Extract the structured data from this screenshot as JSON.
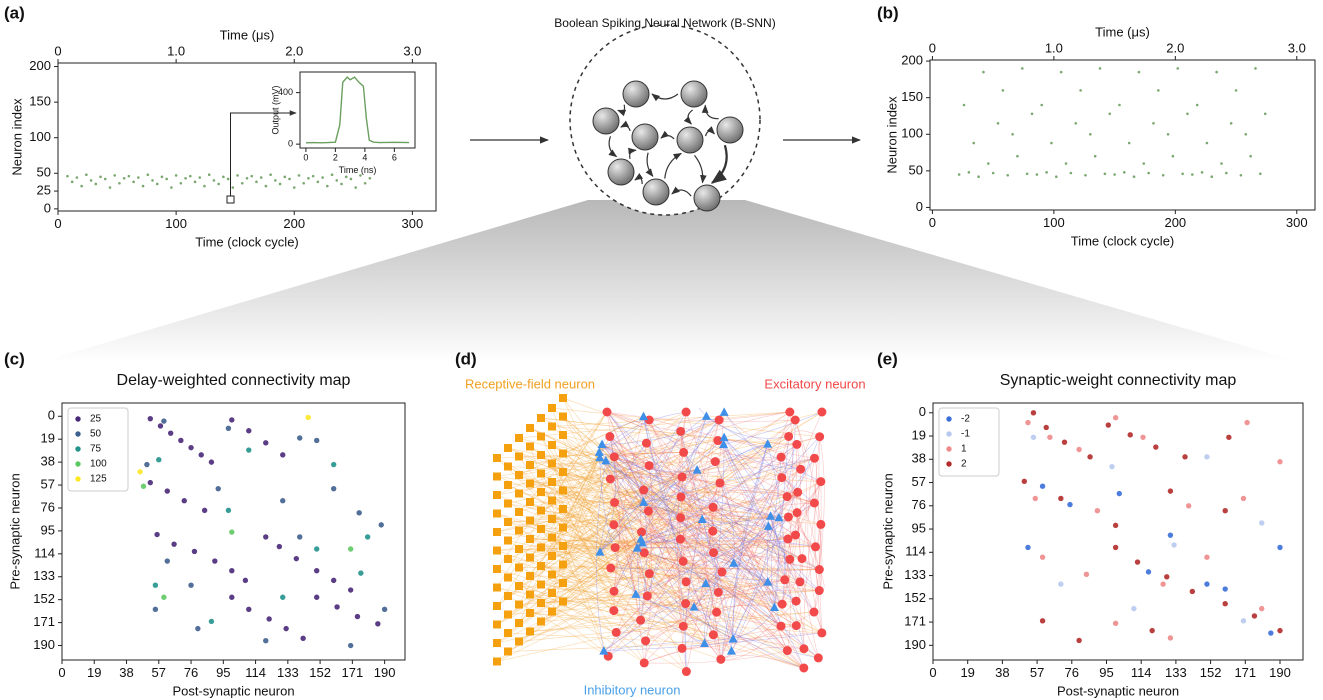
{
  "chart_data": [
    {
      "type": "scatter",
      "label": "(a)",
      "xlabel": "Time (clock cycle)",
      "ylabel": "Neuron index",
      "x2label": "Time (μs)",
      "xlim": [
        0,
        320
      ],
      "xticks": [
        0,
        100,
        200,
        300
      ],
      "x2lim": [
        0,
        3.2
      ],
      "x2ticks": [
        0,
        {
          "value": 1,
          "label": "1.0"
        },
        {
          "value": 2,
          "label": "2.0"
        },
        {
          "value": 3,
          "label": "3.0"
        }
      ],
      "ylim": [
        -3,
        205
      ],
      "yticks": [
        0,
        25,
        50,
        100,
        150,
        200
      ],
      "series": [
        {
          "color": "#6b9f5f",
          "x": [
            8,
            12,
            16,
            20,
            24,
            28,
            32,
            36,
            40,
            44,
            48,
            52,
            56,
            60,
            64,
            68,
            72,
            76,
            80,
            84,
            88,
            92,
            96,
            100,
            104,
            108,
            112,
            116,
            120,
            124,
            128,
            132,
            136,
            140,
            144,
            148,
            152,
            156,
            160,
            164,
            168,
            172,
            176,
            180,
            184,
            188,
            192,
            196,
            200,
            204,
            208,
            212,
            216,
            220,
            224,
            228,
            232,
            236,
            240,
            244,
            248,
            252,
            256,
            260,
            264
          ],
          "values": [
            46,
            38,
            44,
            32,
            48,
            40,
            35,
            45,
            42,
            30,
            47,
            36,
            43,
            46,
            38,
            44,
            32,
            48,
            40,
            35,
            45,
            42,
            30,
            47,
            36,
            43,
            46,
            38,
            44,
            32,
            48,
            40,
            35,
            45,
            42,
            30,
            47,
            36,
            43,
            46,
            38,
            44,
            32,
            48,
            40,
            35,
            45,
            42,
            30,
            47,
            36,
            43,
            46,
            38,
            44,
            32,
            48,
            40,
            35,
            45,
            42,
            30,
            47,
            36,
            43
          ]
        }
      ]
    },
    {
      "type": "line",
      "xlabel": "Time (ns)",
      "ylabel": "Output (mV)",
      "xlim": [
        -0.4,
        7.4
      ],
      "xticks": [
        0,
        2,
        4,
        6
      ],
      "ylim": [
        -30,
        560
      ],
      "yticks": [
        0,
        400
      ],
      "color": "#6b9f5f",
      "x": [
        0,
        0.5,
        1,
        1.5,
        2,
        2.3,
        2.5,
        2.8,
        3,
        3.3,
        3.6,
        3.9,
        4.1,
        4.3,
        4.6,
        5,
        6,
        7
      ],
      "values": [
        10,
        12,
        10,
        12,
        15,
        150,
        480,
        520,
        500,
        520,
        480,
        450,
        200,
        30,
        15,
        12,
        14,
        12
      ]
    },
    {
      "type": "scatter",
      "label": "(b)",
      "xlabel": "Time (clock cycle)",
      "ylabel": "Neuron index",
      "x2label": "Time (μs)",
      "xlim": [
        -2,
        315
      ],
      "xticks": [
        0,
        100,
        200,
        300
      ],
      "x2lim": [
        -0.02,
        3.15
      ],
      "x2ticks": [
        0,
        {
          "value": 1,
          "label": "1.0"
        },
        {
          "value": 2,
          "label": "2.0"
        },
        {
          "value": 3,
          "label": "3.0"
        }
      ],
      "ylim": [
        -3.5,
        201.5
      ],
      "yticks": [
        0,
        50,
        100,
        150,
        200
      ],
      "series": [
        {
          "color": "#6b9f5f",
          "x": [
            22,
            26,
            30,
            34,
            38,
            42,
            46,
            50,
            54,
            58,
            62,
            66,
            70,
            74,
            78,
            82,
            86,
            90,
            94,
            98,
            102,
            106,
            110,
            114,
            118,
            122,
            126,
            130,
            134,
            138,
            142,
            146,
            150,
            154,
            158,
            162,
            166,
            170,
            174,
            178,
            182,
            186,
            190,
            194,
            198,
            202,
            206,
            210,
            214,
            218,
            222,
            226,
            230,
            234,
            238,
            242,
            246,
            250,
            254,
            258,
            262,
            266,
            270,
            274
          ],
          "values": [
            45,
            140,
            48,
            88,
            42,
            185,
            60,
            47,
            115,
            160,
            44,
            100,
            70,
            190,
            46,
            128,
            45,
            140,
            48,
            88,
            42,
            185,
            60,
            47,
            115,
            160,
            44,
            100,
            70,
            190,
            46,
            128,
            45,
            140,
            48,
            88,
            42,
            185,
            60,
            47,
            115,
            160,
            44,
            100,
            70,
            190,
            46,
            128,
            45,
            140,
            48,
            88,
            42,
            185,
            60,
            47,
            115,
            160,
            44,
            100,
            70,
            190,
            46,
            128
          ]
        }
      ]
    },
    {
      "type": "scatter",
      "label": "(c)",
      "title": "Delay-weighted connectivity map",
      "xlabel": "Post-synaptic neuron",
      "ylabel": "Pre-synaptic neuron",
      "xlim": [
        0,
        202
      ],
      "xticks": [
        0,
        19,
        38,
        57,
        76,
        95,
        114,
        133,
        152,
        171,
        190
      ],
      "ylim": [
        -11,
        202
      ],
      "y_inverted": true,
      "yticks": [
        0,
        19,
        38,
        57,
        76,
        95,
        114,
        133,
        152,
        171,
        190
      ],
      "legend": "upper left",
      "series": [
        {
          "name": "25",
          "color": "#482878",
          "x": [
            52,
            58,
            64,
            70,
            76,
            82,
            88,
            100,
            110,
            120,
            130,
            52,
            62,
            72,
            84,
            56,
            66,
            78,
            90,
            100,
            108,
            120,
            128,
            138,
            150,
            160,
            170,
            150,
            162,
            174,
            186,
            100,
            110,
            122,
            132,
            142
          ],
          "values": [
            2,
            8,
            14,
            20,
            26,
            32,
            38,
            3,
            12,
            22,
            32,
            55,
            62,
            70,
            78,
            98,
            106,
            112,
            120,
            128,
            136,
            100,
            108,
            118,
            128,
            136,
            144,
            150,
            158,
            166,
            172,
            150,
            160,
            168,
            176,
            184
          ]
        },
        {
          "name": "50",
          "color": "#3e5f8e",
          "x": [
            60,
            98,
            140,
            50,
            92,
            130,
            160,
            175,
            62,
            140,
            188,
            55,
            80,
            120,
            170,
            190,
            76,
            150
          ],
          "values": [
            4,
            10,
            18,
            40,
            60,
            70,
            60,
            80,
            120,
            100,
            90,
            160,
            176,
            186,
            190,
            160,
            140,
            20
          ]
        },
        {
          "name": "75",
          "color": "#22928c",
          "x": [
            57,
            110,
            160,
            180,
            98,
            150,
            55,
            130,
            88,
            176
          ],
          "values": [
            36,
            28,
            40,
            100,
            78,
            110,
            140,
            150,
            170,
            130
          ]
        },
        {
          "name": "100",
          "color": "#5ec962",
          "x": [
            48,
            100,
            170,
            60
          ],
          "values": [
            58,
            96,
            110,
            150
          ]
        },
        {
          "name": "125",
          "color": "#fde725",
          "x": [
            145,
            46
          ],
          "values": [
            1,
            46
          ]
        }
      ]
    },
    {
      "type": "scatter",
      "label": "(e)",
      "title": "Synaptic-weight connectivity map",
      "xlabel": "Post-synaptic neuron",
      "ylabel": "Pre-synaptic neuron",
      "xlim": [
        0,
        202.6
      ],
      "xticks": [
        0,
        19,
        38,
        57,
        76,
        95,
        114,
        133,
        152,
        171,
        190
      ],
      "ylim": [
        -8,
        202
      ],
      "y_inverted": true,
      "yticks": [
        0,
        19,
        38,
        57,
        76,
        95,
        114,
        133,
        152,
        171,
        190
      ],
      "legend": "upper left",
      "series": [
        {
          "name": "-2",
          "color": "#3a6fd8",
          "x": [
            60,
            75,
            102,
            130,
            150,
            160,
            185,
            190,
            52,
            118
          ],
          "values": [
            60,
            75,
            66,
            100,
            140,
            144,
            180,
            110,
            110,
            130
          ]
        },
        {
          "name": "-1",
          "color": "#b7c9ee",
          "x": [
            55,
            98,
            150,
            180,
            70,
            110,
            170,
            132
          ],
          "values": [
            20,
            44,
            36,
            90,
            140,
            160,
            170,
            108
          ]
        },
        {
          "name": "1",
          "color": "#ee8a8a",
          "x": [
            52,
            64,
            80,
            100,
            115,
            172,
            190,
            56,
            90,
            140,
            170,
            60,
            84,
            126,
            150,
            100,
            130,
            180
          ],
          "values": [
            8,
            20,
            30,
            4,
            20,
            8,
            40,
            70,
            80,
            76,
            70,
            118,
            132,
            140,
            118,
            172,
            184,
            160
          ]
        },
        {
          "name": "2",
          "color": "#b22a2a",
          "x": [
            55,
            62,
            72,
            86,
            96,
            108,
            122,
            138,
            162,
            50,
            70,
            100,
            130,
            160,
            100,
            112,
            128,
            142,
            160,
            176,
            190,
            60,
            80,
            120
          ],
          "values": [
            0,
            12,
            24,
            36,
            10,
            18,
            28,
            36,
            20,
            56,
            70,
            92,
            64,
            80,
            110,
            122,
            134,
            146,
            156,
            166,
            178,
            170,
            186,
            178
          ]
        }
      ]
    }
  ],
  "snn_diagram": {
    "title": "Boolean Spiking Neural Network (B-SNN)"
  },
  "network_diagram": {
    "label": "(d)",
    "receptive_label": "Receptive-field neuron",
    "excitatory_label": "Excitatory neuron",
    "inhibitory_label": "Inhibitory neuron"
  }
}
